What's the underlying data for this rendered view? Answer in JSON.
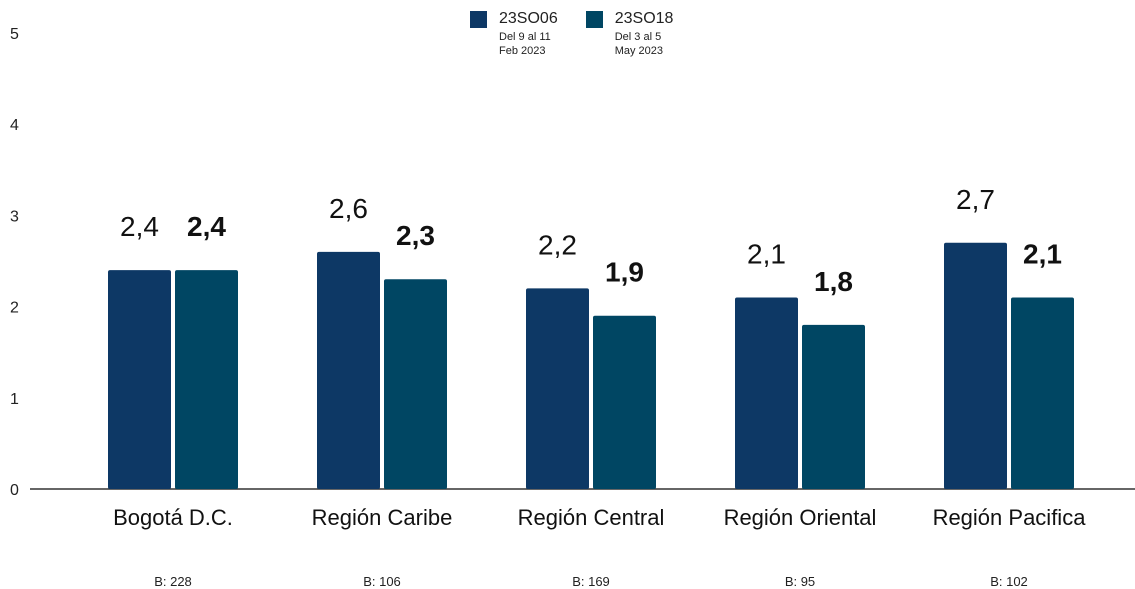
{
  "chart_data": {
    "type": "bar",
    "categories": [
      "Bogotá D.C.",
      "Región Caribe",
      "Región Central",
      "Región Oriental",
      "Región Pacifica"
    ],
    "series": [
      {
        "name": "23SO06",
        "legend_sub": [
          "Del 9 al 11",
          "Feb 2023"
        ],
        "values": [
          2.4,
          2.6,
          2.2,
          2.1,
          2.7
        ],
        "value_labels": [
          "2,4",
          "2,6",
          "2,2",
          "2,1",
          "2,7"
        ],
        "color": "#0d3865",
        "label_bold": false
      },
      {
        "name": "23SO18",
        "legend_sub": [
          "Del 3 al 5",
          "May 2023"
        ],
        "values": [
          2.4,
          2.3,
          1.9,
          1.8,
          2.1
        ],
        "value_labels": [
          "2,4",
          "2,3",
          "1,9",
          "1,8",
          "2,1"
        ],
        "color": "#004663",
        "label_bold": true
      }
    ],
    "base_labels": [
      "B: 228",
      "B: 106",
      "B: 169",
      "B: 95",
      "B: 102"
    ],
    "ylim": [
      0,
      5
    ],
    "yticks": [
      "0",
      "1",
      "2",
      "3",
      "4",
      "5"
    ],
    "title": "",
    "xlabel": "",
    "ylabel": "",
    "grid": false,
    "legend": "top-center"
  }
}
